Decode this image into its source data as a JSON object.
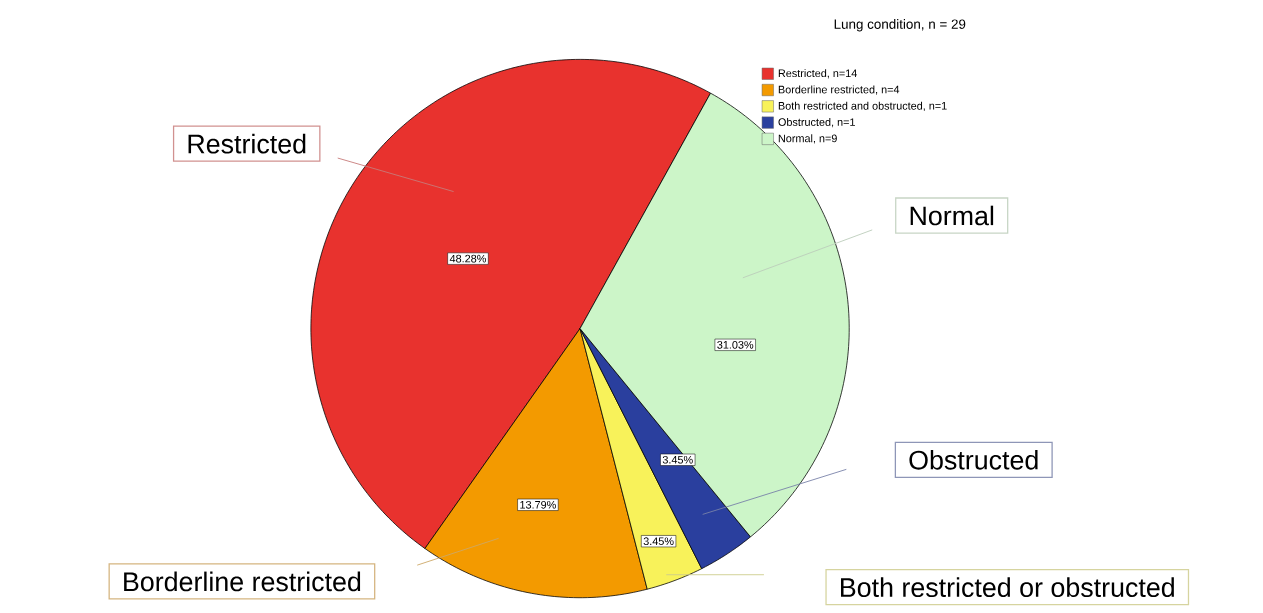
{
  "chart_data": {
    "type": "pie",
    "legend_title": "Lung condition, n = 29",
    "categories": [
      "Restricted, n=14",
      "Borderline restricted, n=4",
      "Both restricted and obstructed, n=1",
      "Obstructed, n=1",
      "Normal, n=9"
    ],
    "values": [
      48.28,
      13.79,
      3.45,
      3.45,
      31.03
    ],
    "value_labels": [
      "48.28%",
      "13.79%",
      "3.45%",
      "3.45%",
      "31.03%"
    ],
    "colors": [
      "#e8322e",
      "#f39a00",
      "#f8f25a",
      "#2a3f9e",
      "#ccf5c8"
    ],
    "legend": "top right",
    "annotations": [
      "Restricted",
      "Borderline restricted",
      "Both restricted or obstructed",
      "Obstructed",
      "Normal"
    ]
  }
}
